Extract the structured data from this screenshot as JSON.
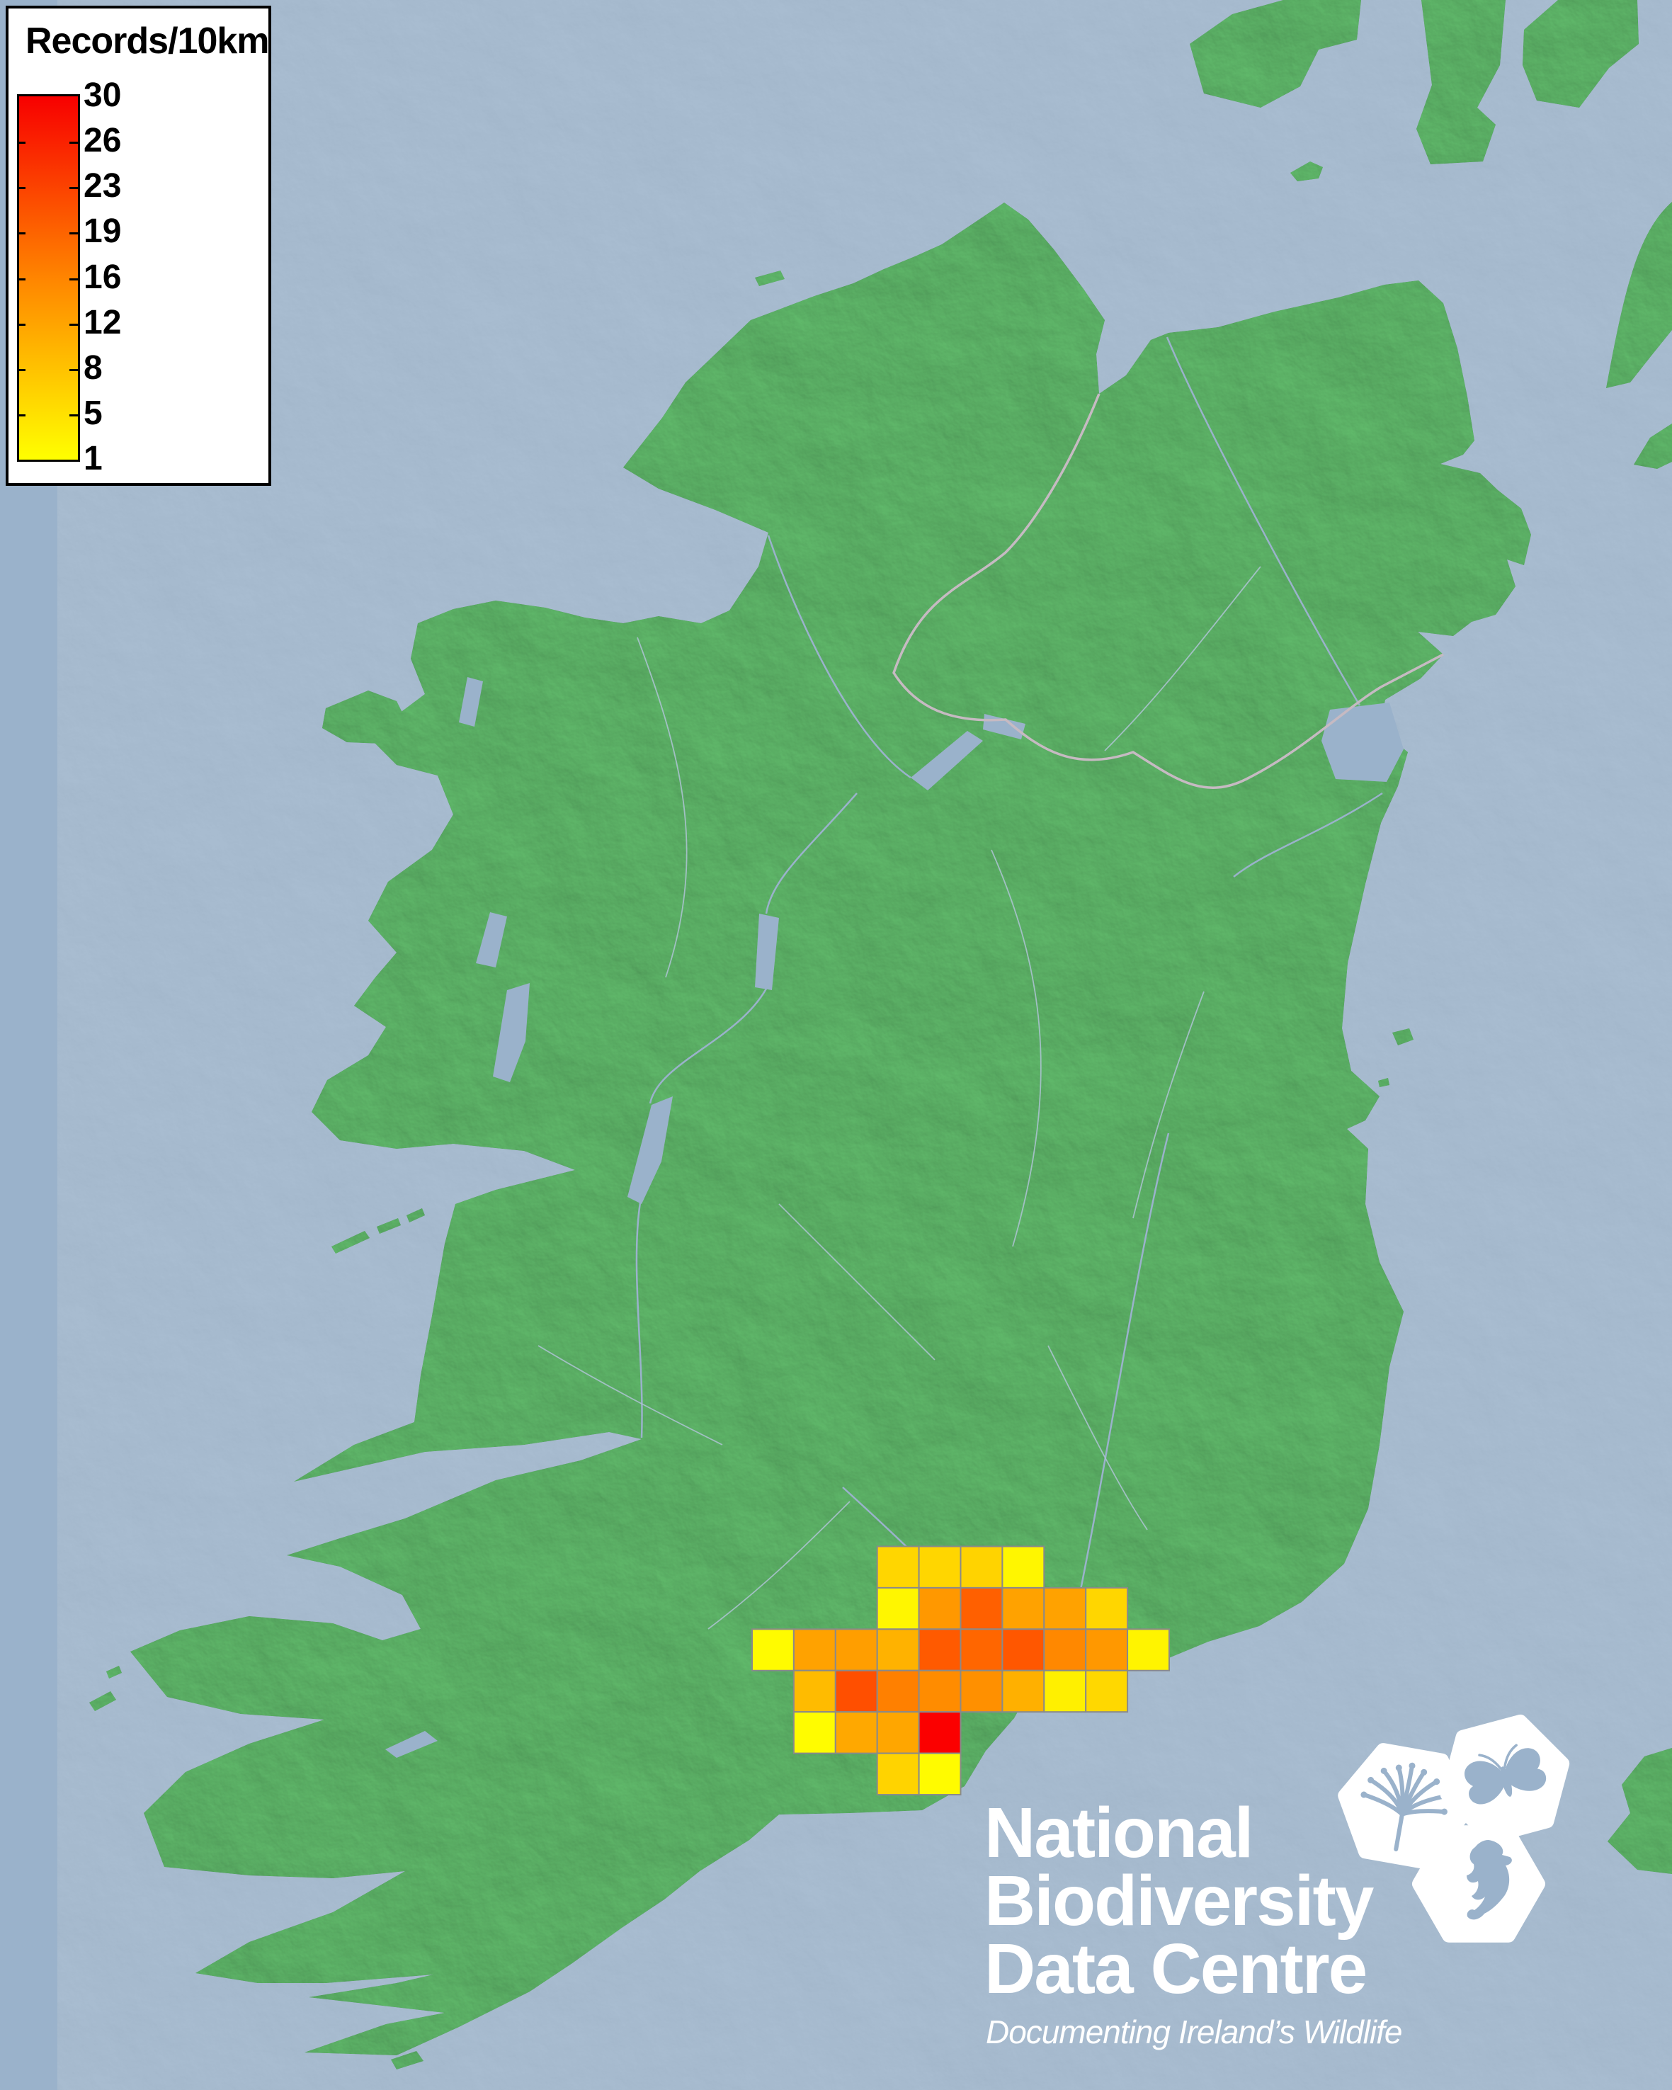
{
  "legend": {
    "title": "Records/10km",
    "labels": [
      "30",
      "26",
      "23",
      "19",
      "16",
      "12",
      "8",
      "5",
      "1"
    ],
    "gradient_top_color": "#F80000",
    "gradient_mid_color": "#FF8A00",
    "gradient_bottom_color": "#FFFF00"
  },
  "map": {
    "sea_color": "#9AB2CB",
    "land_color": "#3FA54B",
    "grid_line_color": "#8A8A8A",
    "boundary_line_color": "#C6BAC2"
  },
  "chart_data": {
    "type": "heatmap",
    "title": "Records/10km",
    "legend_scale_values": [
      30,
      26,
      23,
      19,
      16,
      12,
      8,
      5,
      1
    ],
    "legend_colors": {
      "1": "#FFFF00",
      "30": "#F80000"
    },
    "cells": [
      {
        "row": 0,
        "col": 3,
        "value": 5,
        "color": "#FFD600"
      },
      {
        "row": 0,
        "col": 4,
        "value": 5,
        "color": "#FFD600"
      },
      {
        "row": 0,
        "col": 5,
        "value": 5,
        "color": "#FFD300"
      },
      {
        "row": 0,
        "col": 6,
        "value": 2,
        "color": "#FFF600"
      },
      {
        "row": 1,
        "col": 3,
        "value": 2,
        "color": "#FFF600"
      },
      {
        "row": 1,
        "col": 4,
        "value": 11,
        "color": "#FF9800"
      },
      {
        "row": 1,
        "col": 5,
        "value": 19,
        "color": "#FF6000"
      },
      {
        "row": 1,
        "col": 6,
        "value": 10,
        "color": "#FFA200"
      },
      {
        "row": 1,
        "col": 7,
        "value": 10,
        "color": "#FFA200"
      },
      {
        "row": 1,
        "col": 8,
        "value": 5,
        "color": "#FFD600"
      },
      {
        "row": 2,
        "col": 0,
        "value": 1,
        "color": "#FFFB00"
      },
      {
        "row": 2,
        "col": 1,
        "value": 10,
        "color": "#FFA200"
      },
      {
        "row": 2,
        "col": 2,
        "value": 11,
        "color": "#FF9E00"
      },
      {
        "row": 2,
        "col": 3,
        "value": 9,
        "color": "#FFB200"
      },
      {
        "row": 2,
        "col": 4,
        "value": 20,
        "color": "#FF5A00"
      },
      {
        "row": 2,
        "col": 5,
        "value": 19,
        "color": "#FF6600"
      },
      {
        "row": 2,
        "col": 6,
        "value": 21,
        "color": "#FF5700"
      },
      {
        "row": 2,
        "col": 7,
        "value": 13,
        "color": "#FF8800"
      },
      {
        "row": 2,
        "col": 8,
        "value": 11,
        "color": "#FF9800"
      },
      {
        "row": 2,
        "col": 9,
        "value": 2,
        "color": "#FFF400"
      },
      {
        "row": 3,
        "col": 1,
        "value": 8,
        "color": "#FFBB00"
      },
      {
        "row": 3,
        "col": 2,
        "value": 22,
        "color": "#FF4F00"
      },
      {
        "row": 3,
        "col": 3,
        "value": 15,
        "color": "#FF8000"
      },
      {
        "row": 3,
        "col": 4,
        "value": 13,
        "color": "#FF8C00"
      },
      {
        "row": 3,
        "col": 5,
        "value": 13,
        "color": "#FF9000"
      },
      {
        "row": 3,
        "col": 6,
        "value": 9,
        "color": "#FFB000"
      },
      {
        "row": 3,
        "col": 7,
        "value": 2,
        "color": "#FFF000"
      },
      {
        "row": 3,
        "col": 8,
        "value": 5,
        "color": "#FFD800"
      },
      {
        "row": 4,
        "col": 1,
        "value": 1,
        "color": "#FFFC00"
      },
      {
        "row": 4,
        "col": 2,
        "value": 10,
        "color": "#FFA800"
      },
      {
        "row": 4,
        "col": 3,
        "value": 10,
        "color": "#FFA600"
      },
      {
        "row": 4,
        "col": 4,
        "value": 30,
        "color": "#FB0000"
      },
      {
        "row": 5,
        "col": 3,
        "value": 5,
        "color": "#FFD300"
      },
      {
        "row": 5,
        "col": 4,
        "value": 1,
        "color": "#FFFB00"
      }
    ]
  },
  "logo": {
    "line1": "National",
    "line2": "Biodiversity",
    "line3": "Data Centre",
    "tagline": "Documenting Ireland’s Wildlife",
    "text_color": "#FFFFFF",
    "icons": [
      "tree-icon",
      "butterfly-icon",
      "seahorse-icon"
    ]
  }
}
